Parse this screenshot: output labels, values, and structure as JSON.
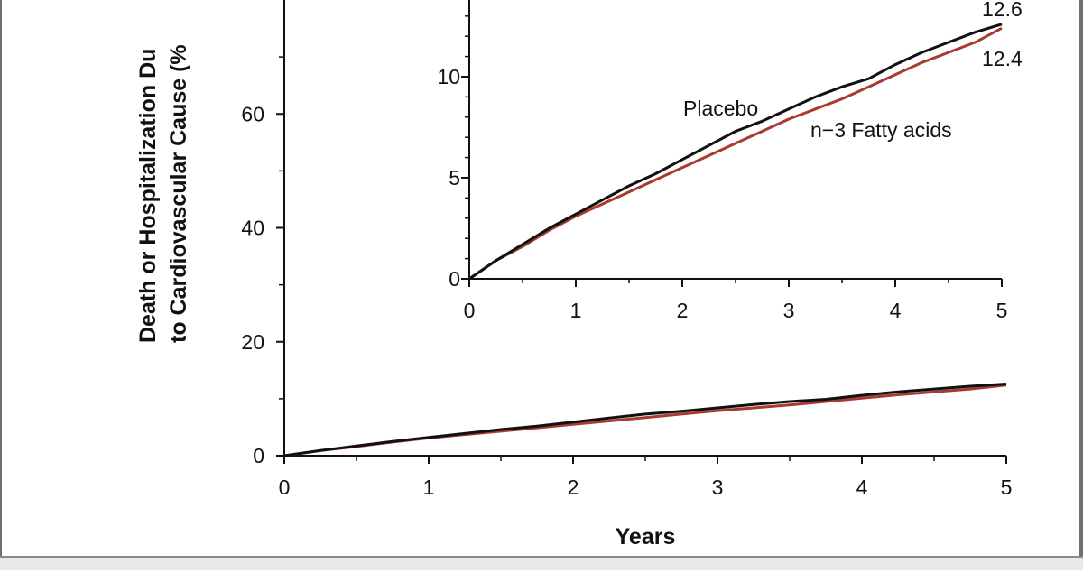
{
  "colors": {
    "placebo": "#111111",
    "fatty_acids": "#a83a32",
    "axis": "#111111"
  },
  "chart_data": [
    {
      "type": "line",
      "ylabel_line1": "Death or Hospitalization Du",
      "ylabel_line2": "to Cardiovascular Cause (%",
      "xlabel": "Years",
      "xlim": [
        0,
        5
      ],
      "ylim": [
        0,
        80
      ],
      "x_ticks": [
        "0",
        "1",
        "2",
        "3",
        "4",
        "5"
      ],
      "y_ticks": [
        {
          "value": 0,
          "label": "0"
        },
        {
          "value": 20,
          "label": "20"
        },
        {
          "value": 40,
          "label": "40"
        },
        {
          "value": 60,
          "label": "60"
        }
      ],
      "x": [
        0,
        0.25,
        0.5,
        0.75,
        1,
        1.25,
        1.5,
        1.75,
        2,
        2.25,
        2.5,
        2.75,
        3,
        3.25,
        3.5,
        3.75,
        4,
        4.25,
        4.5,
        4.75,
        5
      ],
      "series": [
        {
          "name": "Placebo",
          "color_key": "placebo",
          "values": [
            0,
            0.9,
            1.7,
            2.5,
            3.2,
            3.9,
            4.6,
            5.2,
            5.9,
            6.6,
            7.3,
            7.8,
            8.4,
            9.0,
            9.5,
            9.9,
            10.6,
            11.2,
            11.7,
            12.2,
            12.6
          ]
        },
        {
          "name": "n−3 Fatty acids",
          "color_key": "fatty_acids",
          "values": [
            0,
            0.9,
            1.6,
            2.4,
            3.1,
            3.7,
            4.3,
            4.9,
            5.5,
            6.1,
            6.7,
            7.3,
            7.9,
            8.4,
            8.9,
            9.5,
            10.1,
            10.7,
            11.2,
            11.7,
            12.4
          ]
        }
      ]
    },
    {
      "type": "line",
      "role": "inset",
      "xlim": [
        0,
        5
      ],
      "ylim": [
        0,
        15
      ],
      "x_ticks": [
        "0",
        "1",
        "2",
        "3",
        "4",
        "5"
      ],
      "y_ticks": [
        {
          "value": 0,
          "label": "0"
        },
        {
          "value": 5,
          "label": "5"
        },
        {
          "value": 10,
          "label": "10"
        }
      ],
      "x": [
        0,
        0.25,
        0.5,
        0.75,
        1,
        1.25,
        1.5,
        1.75,
        2,
        2.25,
        2.5,
        2.75,
        3,
        3.25,
        3.5,
        3.75,
        4,
        4.25,
        4.5,
        4.75,
        5
      ],
      "series": [
        {
          "name": "Placebo",
          "color_key": "placebo",
          "values": [
            0,
            0.9,
            1.7,
            2.5,
            3.2,
            3.9,
            4.6,
            5.2,
            5.9,
            6.6,
            7.3,
            7.8,
            8.4,
            9.0,
            9.5,
            9.9,
            10.6,
            11.2,
            11.7,
            12.2,
            12.6
          ]
        },
        {
          "name": "n−3 Fatty acids",
          "color_key": "fatty_acids",
          "values": [
            0,
            0.9,
            1.6,
            2.4,
            3.1,
            3.7,
            4.3,
            4.9,
            5.5,
            6.1,
            6.7,
            7.3,
            7.9,
            8.4,
            8.9,
            9.5,
            10.1,
            10.7,
            11.2,
            11.7,
            12.4
          ]
        }
      ],
      "annotations": {
        "placebo_label": "Placebo",
        "fatty_label": "n−3 Fatty acids",
        "placebo_end": "12.6",
        "fatty_end": "12.4"
      }
    }
  ]
}
